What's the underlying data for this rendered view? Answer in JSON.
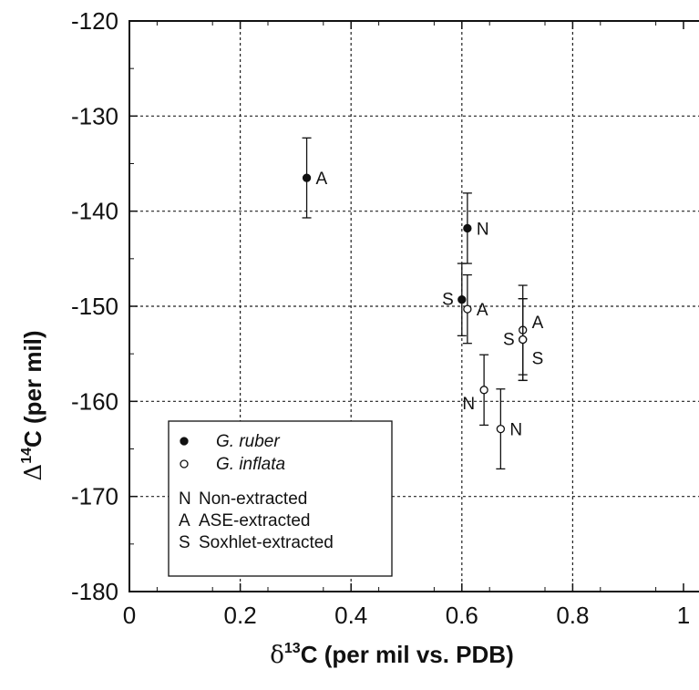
{
  "chart_data": {
    "type": "scatter",
    "xlabel": {
      "symbol": "δ",
      "sup": "13",
      "rest": "C (per mil vs. PDB)"
    },
    "ylabel": {
      "symbol": "Δ",
      "sup": "14",
      "rest": "C (per mil)"
    },
    "xlim": [
      0,
      1
    ],
    "ylim": [
      -180,
      -120
    ],
    "x_ticks": [
      0,
      0.2,
      0.4,
      0.6,
      0.8,
      1
    ],
    "x_tick_labels": [
      "0",
      "0.2",
      "0.4",
      "0.6",
      "0.8",
      "1"
    ],
    "y_ticks": [
      -180,
      -170,
      -160,
      -150,
      -140,
      -130,
      -120
    ],
    "y_tick_labels": [
      "-180",
      "-170",
      "-160",
      "-150",
      "-140",
      "-130",
      "-120"
    ],
    "grid": true,
    "series": [
      {
        "name": "G. ruber",
        "marker": "filled-circle",
        "points": [
          {
            "x": 0.32,
            "y": -136.5,
            "err": 4.2,
            "label": "A",
            "label_side": "right"
          },
          {
            "x": 0.61,
            "y": -141.8,
            "err": 3.7,
            "label": "N",
            "label_side": "right"
          },
          {
            "x": 0.6,
            "y": -149.3,
            "err": 3.8,
            "label": "S",
            "label_side": "left"
          }
        ]
      },
      {
        "name": "G. inflata",
        "marker": "open-circle",
        "points": [
          {
            "x": 0.61,
            "y": -150.3,
            "err": 3.6,
            "label": "A",
            "label_side": "right"
          },
          {
            "x": 0.71,
            "y": -152.5,
            "err": 4.7,
            "label": "A",
            "label_side": "right-up"
          },
          {
            "x": 0.71,
            "y": -153.5,
            "err": 4.3,
            "label": "S",
            "label_side": "left"
          },
          {
            "x": 0.71,
            "y": -153.5,
            "err": 4.3,
            "label": "S",
            "label_side": "right-down"
          },
          {
            "x": 0.64,
            "y": -158.8,
            "err": 3.7,
            "label": "N",
            "label_side": "left-down"
          },
          {
            "x": 0.67,
            "y": -162.9,
            "err": 4.2,
            "label": "N",
            "label_side": "right"
          }
        ]
      }
    ],
    "legend": {
      "placement": "lower-left",
      "marker_entries": [
        {
          "marker": "filled-circle",
          "text": "G. ruber"
        },
        {
          "marker": "open-circle",
          "text": "G. inflata"
        }
      ],
      "key_entries": [
        {
          "key": "N",
          "text": "Non-extracted"
        },
        {
          "key": "A",
          "text": "ASE-extracted"
        },
        {
          "key": "S",
          "text": "Soxhlet-extracted"
        }
      ]
    }
  }
}
